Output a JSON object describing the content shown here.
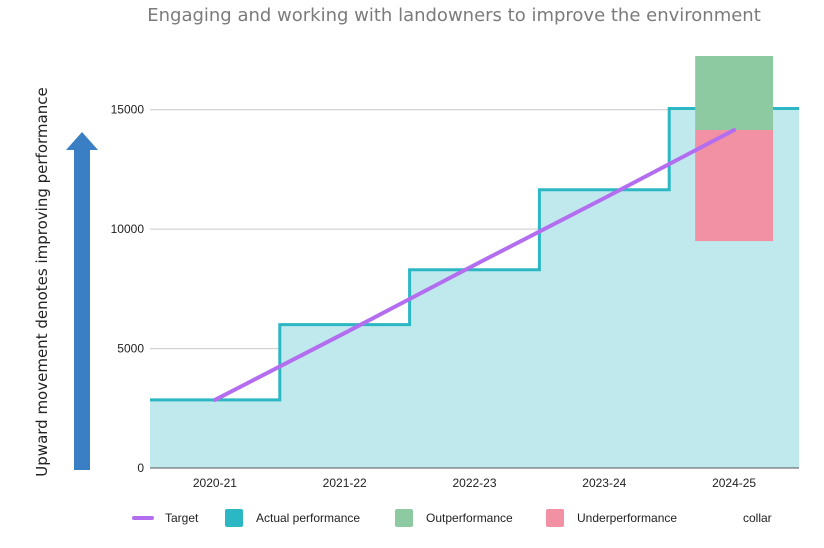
{
  "chart_data": {
    "type": "area",
    "title": "Engaging and working with landowners to improve the environment",
    "xlabel": "",
    "ylabel": "Upward movement denotes improving performance",
    "categories": [
      "2020-21",
      "2021-22",
      "2022-23",
      "2023-24",
      "2024-25"
    ],
    "ylim": [
      0,
      17500
    ],
    "yticks": [
      0,
      5000,
      10000,
      15000
    ],
    "grid": true,
    "series": [
      {
        "name": "Target",
        "kind": "line",
        "values": [
          2850,
          5650,
          8500,
          11300,
          14150
        ]
      },
      {
        "name": "Actual performance",
        "kind": "step-area",
        "values": [
          2850,
          6000,
          8300,
          11650,
          15050
        ]
      },
      {
        "name": "Outperformance",
        "kind": "range",
        "category": "2024-25",
        "low": 14150,
        "high": 17250
      },
      {
        "name": "Underperformance",
        "kind": "range",
        "category": "2024-25",
        "low": 9500,
        "high": 14150
      },
      {
        "name": "collar",
        "kind": "legend-only"
      }
    ],
    "legend": "bottom",
    "colors": {
      "target": "#b36ef0",
      "actual_line": "#2bb7c3",
      "actual_fill": "#c0e9ee",
      "outperformance": "#8ecaa1",
      "underperformance": "#f291a4",
      "arrow": "#3a7fc4",
      "grid": "#c9c9c9"
    }
  }
}
